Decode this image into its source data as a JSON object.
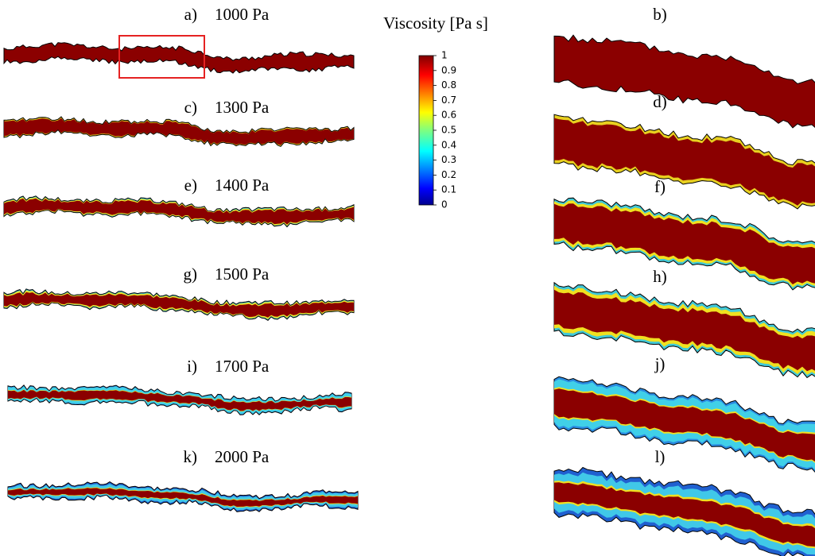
{
  "figure": {
    "colorbar": {
      "title": "Viscosity [Pa s]",
      "ticks": [
        1,
        0.9,
        0.8,
        0.7,
        0.6,
        0.5,
        0.4,
        0.3,
        0.2,
        0.1,
        0
      ]
    },
    "panels": [
      {
        "label": "a)",
        "pressure": "1000 Pa"
      },
      {
        "label": "c)",
        "pressure": "1300 Pa"
      },
      {
        "label": "e)",
        "pressure": "1400 Pa"
      },
      {
        "label": "g)",
        "pressure": "1500 Pa"
      },
      {
        "label": "i)",
        "pressure": "1700 Pa"
      },
      {
        "label": "k)",
        "pressure": "2000 Pa"
      }
    ],
    "zoom_panels": [
      {
        "label": "b)"
      },
      {
        "label": "d)"
      },
      {
        "label": "f)"
      },
      {
        "label": "h)"
      },
      {
        "label": "j)"
      },
      {
        "label": "l)"
      }
    ]
  }
}
